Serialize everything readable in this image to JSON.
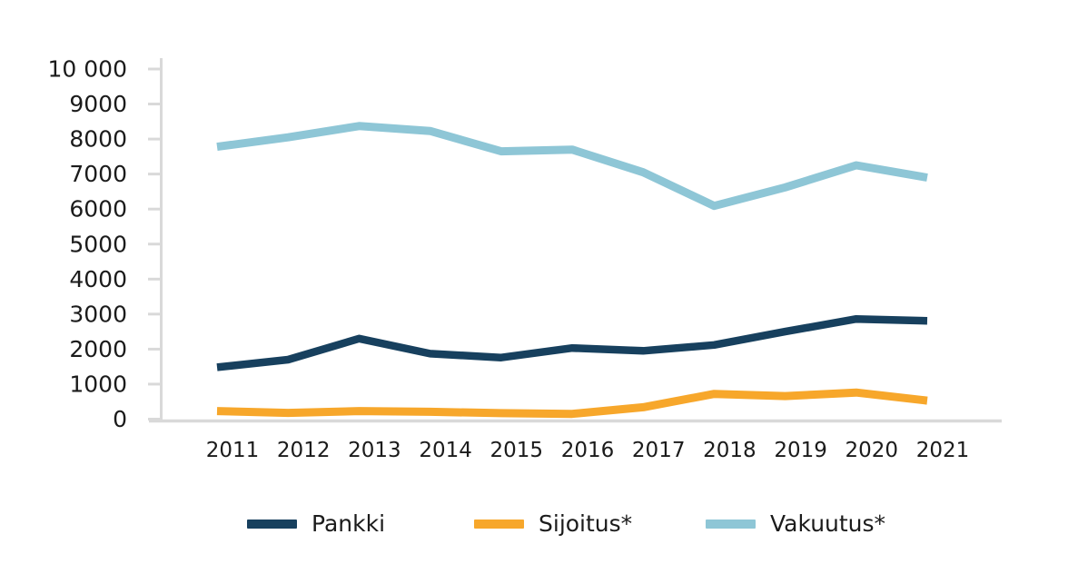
{
  "chart_data": {
    "type": "line",
    "title": "",
    "xlabel": "",
    "ylabel": "",
    "x": [
      "2011",
      "2012",
      "2013",
      "2014",
      "2015",
      "2016",
      "2017",
      "2018",
      "2019",
      "2020",
      "2021"
    ],
    "series": [
      {
        "name": "Pankki",
        "color": "#17405E",
        "values": [
          1480,
          1700,
          2300,
          1870,
          1760,
          2030,
          1950,
          2120,
          2500,
          2860,
          2810
        ]
      },
      {
        "name": "Sijoitus*",
        "color": "#F7A72B",
        "values": [
          230,
          180,
          230,
          210,
          170,
          150,
          340,
          720,
          660,
          760,
          530
        ]
      },
      {
        "name": "Vakuutus*",
        "color": "#8EC6D6",
        "values": [
          7780,
          8050,
          8370,
          8230,
          7650,
          7700,
          7050,
          6090,
          6620,
          7250,
          6900
        ]
      }
    ],
    "ylim": [
      0,
      10000
    ],
    "y_ticks": [
      0,
      1000,
      2000,
      3000,
      4000,
      5000,
      6000,
      7000,
      8000,
      9000,
      10000
    ],
    "y_tick_labels": [
      "0",
      "1000",
      "2000",
      "3000",
      "4000",
      "5000",
      "6000",
      "7000",
      "8000",
      "9000",
      "10 000"
    ],
    "grid": false,
    "legend_position": "bottom",
    "legend_entries": [
      "Pankki",
      "Sijoitus*",
      "Vakuutus*"
    ],
    "axis_color": "#D9D9D9",
    "text_color": "#1B1B1B"
  }
}
